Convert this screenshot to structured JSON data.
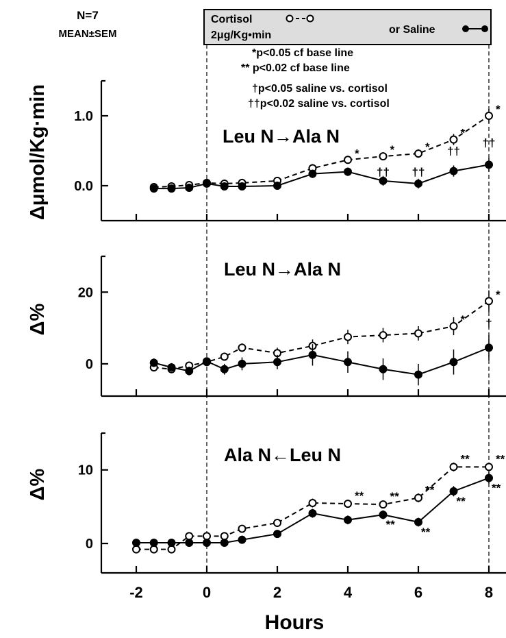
{
  "header": {
    "n_label": "N=7",
    "stat_label": "MEAN±SEM",
    "legend_cortisol": "Cortisol",
    "legend_dose": "2μg/Kg•min",
    "legend_or_saline": "or Saline",
    "sig_lines": [
      "*p<0.05 cf base line",
      "** p<0.02 cf base line",
      "†p<0.05 saline vs. cortisol",
      "††p<0.02 saline vs. cortisol"
    ]
  },
  "colors": {
    "line": "#000000",
    "legend_box": "#dddddd"
  },
  "chart_data": [
    {
      "type": "line",
      "title": "Leu N→Ala N",
      "ylabel": "Δμmol/Kg·min",
      "xlabel": "Hours",
      "xlim": [
        -2.3,
        8.3
      ],
      "ylim": [
        -0.5,
        1.5
      ],
      "yticks": [
        "0.0",
        "1.0"
      ],
      "ytick_values": [
        0.0,
        1.0
      ],
      "series": [
        {
          "name": "Cortisol",
          "marker": "open",
          "x": [
            -1.5,
            -1,
            -0.5,
            0,
            0.5,
            1,
            2,
            3,
            4,
            5,
            6,
            7,
            8
          ],
          "y": [
            -0.02,
            -0.01,
            0.01,
            0.04,
            0.03,
            0.04,
            0.07,
            0.25,
            0.37,
            0.42,
            0.46,
            0.66,
            1.0
          ],
          "err": [
            0.04,
            0.04,
            0.04,
            0.03,
            0.04,
            0.04,
            0.05,
            0.06,
            0.05,
            0.05,
            0.06,
            0.08,
            0.1
          ]
        },
        {
          "name": "Saline",
          "marker": "filled",
          "x": [
            -1.5,
            -1,
            -0.5,
            0,
            0.5,
            1,
            2,
            3,
            4,
            5,
            6,
            7,
            8
          ],
          "y": [
            -0.04,
            -0.04,
            -0.03,
            0.03,
            -0.01,
            -0.01,
            0.0,
            0.17,
            0.2,
            0.07,
            0.03,
            0.21,
            0.3
          ],
          "err": [
            0.04,
            0.04,
            0.04,
            0.03,
            0.04,
            0.04,
            0.05,
            0.06,
            0.06,
            0.07,
            0.07,
            0.08,
            0.1
          ]
        }
      ],
      "annotations": [
        {
          "text": "*",
          "x": 4,
          "y": 0.37,
          "dx": 10,
          "dy": -4
        },
        {
          "text": "*",
          "x": 5,
          "y": 0.42,
          "dx": 10,
          "dy": -4
        },
        {
          "text": "*",
          "x": 6,
          "y": 0.46,
          "dx": 10,
          "dy": -4
        },
        {
          "text": "*",
          "x": 7,
          "y": 0.66,
          "dx": 10,
          "dy": -4
        },
        {
          "text": "*",
          "x": 8,
          "y": 1.0,
          "dx": 10,
          "dy": -4
        },
        {
          "text": "††",
          "x": 5,
          "y": 0.2,
          "dx": 0,
          "dy": 6
        },
        {
          "text": "††",
          "x": 6,
          "y": 0.2,
          "dx": 0,
          "dy": 6
        },
        {
          "text": "††",
          "x": 7,
          "y": 0.5,
          "dx": 0,
          "dy": 6
        },
        {
          "text": "††",
          "x": 8,
          "y": 0.62,
          "dx": 0,
          "dy": 6
        }
      ]
    },
    {
      "type": "line",
      "title": "Leu N→Ala N",
      "ylabel": "Δ%",
      "xlabel": "Hours",
      "xlim": [
        -2.3,
        8.3
      ],
      "ylim": [
        -9,
        30
      ],
      "yticks": [
        "0",
        "20"
      ],
      "ytick_values": [
        0,
        20
      ],
      "series": [
        {
          "name": "Cortisol",
          "marker": "open",
          "x": [
            -1.5,
            -1,
            -0.5,
            0,
            0.5,
            1,
            2,
            3,
            4,
            5,
            6,
            7,
            8
          ],
          "y": [
            -1,
            -1.5,
            -0.5,
            0.5,
            2,
            4.5,
            3,
            5,
            7.5,
            8,
            8.5,
            10.5,
            17.5
          ],
          "err": [
            1,
            1,
            1,
            1,
            1,
            1.2,
            1.5,
            1.8,
            2,
            2,
            2,
            2.5,
            3
          ]
        },
        {
          "name": "Saline",
          "marker": "filled",
          "x": [
            -1.5,
            -1,
            -0.5,
            0,
            0.5,
            1,
            2,
            3,
            4,
            5,
            6,
            7,
            8
          ],
          "y": [
            0.3,
            -1,
            -2,
            0.7,
            -1.5,
            0,
            0.5,
            2.5,
            0.5,
            -1.5,
            -3,
            0.5,
            4.5
          ],
          "err": [
            1.2,
            1.2,
            1.2,
            1,
            1.5,
            1.8,
            2,
            3,
            3,
            3,
            3,
            3.5,
            3.5
          ]
        }
      ],
      "annotations": [
        {
          "text": "*",
          "x": 7,
          "y": 10.5,
          "dx": 10,
          "dy": -4
        },
        {
          "text": "*",
          "x": 8,
          "y": 17.5,
          "dx": 10,
          "dy": -4
        },
        {
          "text": "†",
          "x": 8,
          "y": 11.5,
          "dx": 0,
          "dy": 6
        }
      ]
    },
    {
      "type": "line",
      "title": "Ala N←Leu N",
      "ylabel": "Δ%",
      "xlabel": "Hours",
      "xlim": [
        -2.3,
        8.3
      ],
      "ylim": [
        -4,
        15
      ],
      "yticks": [
        "0",
        "10"
      ],
      "ytick_values": [
        0,
        10
      ],
      "xticks": [
        "-2",
        "0",
        "2",
        "4",
        "6",
        "8"
      ],
      "xtick_values": [
        -2,
        0,
        2,
        4,
        6,
        8
      ],
      "series": [
        {
          "name": "Cortisol",
          "marker": "open",
          "x": [
            -2,
            -1.5,
            -1,
            -0.5,
            0,
            0.5,
            1,
            2,
            3,
            4,
            5,
            6,
            7,
            8
          ],
          "y": [
            -0.8,
            -0.8,
            -0.8,
            1,
            1,
            1,
            2,
            2.8,
            5.5,
            5.4,
            5.3,
            6.2,
            10.4,
            10.4
          ],
          "err": [
            0.5,
            0.5,
            0.5,
            0.5,
            0.5,
            0.5,
            0.5,
            0.5,
            0.6,
            0.5,
            0.5,
            0.6,
            0.6,
            0.6
          ]
        },
        {
          "name": "Saline",
          "marker": "filled",
          "x": [
            -2,
            -1.5,
            -1,
            -0.5,
            0,
            0.5,
            1,
            2,
            3,
            4,
            5,
            6,
            7,
            8
          ],
          "y": [
            0.1,
            0.1,
            0.1,
            0.1,
            0.1,
            0.1,
            0.5,
            1.3,
            4.1,
            3.2,
            3.9,
            2.9,
            7.1,
            8.9
          ],
          "err": [
            0.4,
            0.4,
            0.4,
            0.4,
            0.4,
            0.4,
            0.5,
            0.5,
            0.6,
            0.6,
            0.6,
            0.6,
            0.7,
            0.8
          ]
        }
      ],
      "annotations": [
        {
          "text": "**",
          "x": 4,
          "y": 5.4,
          "dx": 10,
          "dy": -6
        },
        {
          "text": "**",
          "x": 5,
          "y": 5.3,
          "dx": 10,
          "dy": -6
        },
        {
          "text": "**",
          "x": 6,
          "y": 6.2,
          "dx": 10,
          "dy": -6
        },
        {
          "text": "**",
          "x": 7,
          "y": 10.4,
          "dx": 10,
          "dy": -6
        },
        {
          "text": "**",
          "x": 8,
          "y": 10.4,
          "dx": 10,
          "dy": -6
        },
        {
          "text": "**",
          "x": 5,
          "y": 3.9,
          "dx": 4,
          "dy": 20
        },
        {
          "text": "**",
          "x": 6,
          "y": 2.9,
          "dx": 4,
          "dy": 20
        },
        {
          "text": "**",
          "x": 7,
          "y": 7.1,
          "dx": 4,
          "dy": 20
        },
        {
          "text": "**",
          "x": 8,
          "y": 8.9,
          "dx": 4,
          "dy": 20
        }
      ]
    }
  ]
}
